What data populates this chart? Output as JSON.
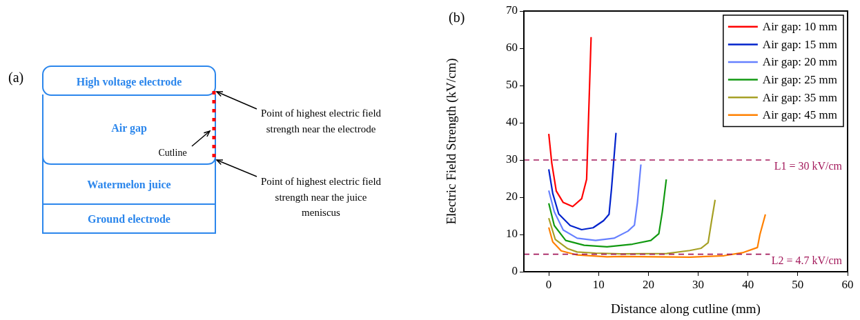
{
  "chart_data": [
    {
      "type": "other",
      "title": "(a)",
      "annotations": [
        "High voltage electrode",
        "Air gap",
        "Cutline",
        "Watermelon juice",
        "Ground electrode",
        "Point of highest electric field strength near the electrode",
        "Point of highest electric field strength near the juice meniscus"
      ]
    },
    {
      "type": "line",
      "title": "(b)",
      "xlabel": "Distance along cutline (mm)",
      "ylabel": "Electric Field Strength (kV/cm)",
      "xlim": [
        -5,
        60
      ],
      "xticks": [
        0,
        10,
        20,
        30,
        40,
        50,
        60
      ],
      "ylim": [
        0,
        70
      ],
      "yticks": [
        0,
        10,
        20,
        30,
        40,
        50,
        60,
        70
      ],
      "grid": false,
      "legend": "top right",
      "marker": "none",
      "line_style": "solid",
      "ref_lines": [
        {
          "axis": "y",
          "value": 30,
          "label": "L1 = 30 kV/cm",
          "color": "#a3195b",
          "line_style": "dashed"
        },
        {
          "axis": "y",
          "value": 4.7,
          "label": "L2 = 4.7 kV/cm",
          "color": "#a3195b",
          "line_style": "dashed"
        }
      ],
      "series": [
        {
          "name": "Air gap: 10 mm",
          "color": "#ff0000",
          "x": [
            0,
            0.6,
            1.5,
            2.9,
            4.8,
            6.6,
            7.6,
            8.5
          ],
          "values": [
            37,
            29.2,
            21.7,
            18.6,
            17.5,
            19.6,
            24.8,
            63
          ]
        },
        {
          "name": "Air gap: 15 mm",
          "color": "#0022cc",
          "x": [
            0,
            0.8,
            2,
            4.3,
            6.6,
            8.9,
            11,
            12.1,
            12.6,
            13.5
          ],
          "values": [
            27.5,
            21,
            15.5,
            12.4,
            11.3,
            11.8,
            13.7,
            15.4,
            22.3,
            37.3
          ]
        },
        {
          "name": "Air gap: 20 mm",
          "color": "#6680ff",
          "x": [
            0,
            1.1,
            2.9,
            5.7,
            9.4,
            13.1,
            15.9,
            17.2,
            17.8,
            18.5
          ],
          "values": [
            21.8,
            16.1,
            11.2,
            9,
            8.4,
            9,
            10.9,
            12.5,
            18.6,
            28.8
          ]
        },
        {
          "name": "Air gap: 25 mm",
          "color": "#119911",
          "x": [
            0,
            1.1,
            3.4,
            7.1,
            11.7,
            16.8,
            20.5,
            22.1,
            22.8,
            23.6
          ],
          "values": [
            18.4,
            12.4,
            8.4,
            7.1,
            6.7,
            7.4,
            8.4,
            10.2,
            16.1,
            24.8
          ]
        },
        {
          "name": "Air gap: 35 mm",
          "color": "#a6a024",
          "x": [
            0,
            1.3,
            3.8,
            5.7,
            9.4,
            14.5,
            23.7,
            28.3,
            30.6,
            32,
            32.7,
            33.4
          ],
          "values": [
            14.4,
            8.7,
            6.2,
            5.3,
            5,
            4.8,
            4.9,
            5.7,
            6.3,
            7.8,
            13.7,
            19.3
          ]
        },
        {
          "name": "Air gap: 45 mm",
          "color": "#ff8000",
          "x": [
            0,
            0.8,
            2.5,
            5.7,
            11.7,
            14.5,
            28.3,
            35.2,
            38.9,
            41.9,
            42.4,
            43.5
          ],
          "values": [
            11.9,
            8,
            5.6,
            4.5,
            4,
            4.1,
            3.9,
            4.3,
            5.1,
            6.5,
            10,
            15.4
          ]
        }
      ]
    }
  ]
}
